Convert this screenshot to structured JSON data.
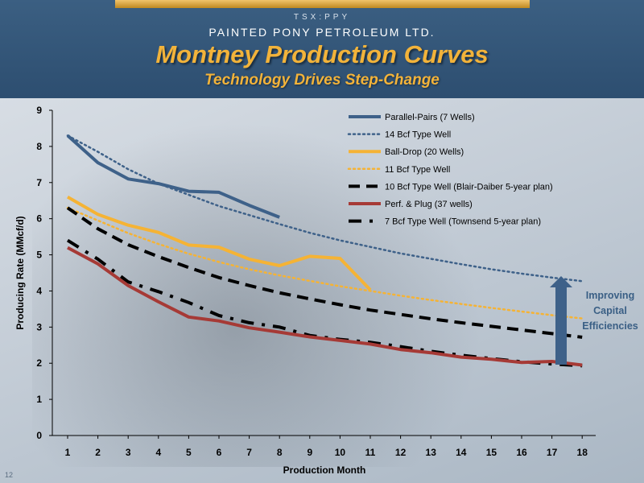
{
  "header": {
    "ticker": "TSX:PPY",
    "company": "PAINTED PONY PETROLEUM LTD.",
    "title": "Montney Production Curves",
    "subtitle": "Technology Drives Step-Change"
  },
  "page_number": "12",
  "annotation": {
    "line1": "Improving",
    "line2": "Capital",
    "line3": "Efficiencies"
  },
  "colors": {
    "blue": "#3e6189",
    "gold": "#f5b335",
    "red": "#a63a36",
    "black": "#000000",
    "arrow": "#3e6189"
  },
  "chart_data": {
    "type": "line",
    "xlabel": "Production Month",
    "ylabel": "Producing Rate (MMcf/d)",
    "xlim": [
      1,
      18
    ],
    "ylim": [
      0,
      9
    ],
    "x_ticks": [
      "1",
      "2",
      "3",
      "4",
      "5",
      "6",
      "7",
      "8",
      "9",
      "10",
      "11",
      "12",
      "13",
      "14",
      "15",
      "16",
      "17",
      "18"
    ],
    "y_ticks": [
      "0",
      "1",
      "2",
      "3",
      "4",
      "5",
      "6",
      "7",
      "8",
      "9"
    ],
    "grid": false,
    "legend_position": "top-right",
    "series": [
      {
        "name": "Parallel-Pairs (7 Wells)",
        "color_key": "blue",
        "style": "solid",
        "x": [
          1,
          2,
          3,
          4,
          5,
          6,
          7,
          8
        ],
        "y": [
          8.3,
          7.55,
          7.1,
          6.97,
          6.76,
          6.73,
          6.37,
          6.04
        ]
      },
      {
        "name": "14 Bcf Type Well",
        "color_key": "blue",
        "style": "dotted",
        "x": [
          1,
          2,
          3,
          4,
          5,
          6,
          7,
          8,
          9,
          10,
          11,
          12,
          13,
          14,
          15,
          16,
          17,
          18
        ],
        "y": [
          8.3,
          7.85,
          7.37,
          6.97,
          6.66,
          6.35,
          6.1,
          5.85,
          5.61,
          5.4,
          5.22,
          5.04,
          4.89,
          4.74,
          4.6,
          4.48,
          4.37,
          4.27
        ]
      },
      {
        "name": "Ball-Drop (20 Wells)",
        "color_key": "gold",
        "style": "solid",
        "x": [
          1,
          2,
          3,
          4,
          5,
          6,
          7,
          8,
          9,
          10,
          11
        ],
        "y": [
          6.6,
          6.12,
          5.82,
          5.62,
          5.27,
          5.21,
          4.88,
          4.7,
          4.96,
          4.9,
          4.03
        ]
      },
      {
        "name": "11 Bcf Type Well",
        "color_key": "gold",
        "style": "dotted",
        "x": [
          1,
          2,
          3,
          4,
          5,
          6,
          7,
          8,
          9,
          10,
          11,
          12,
          13,
          14,
          15,
          16,
          17,
          18
        ],
        "y": [
          6.3,
          5.95,
          5.6,
          5.3,
          5.03,
          4.8,
          4.6,
          4.43,
          4.28,
          4.13,
          4.0,
          3.87,
          3.75,
          3.64,
          3.53,
          3.43,
          3.33,
          3.24
        ]
      },
      {
        "name": "10 Bcf Type Well (Blair-Daiber 5-year plan)",
        "color_key": "black",
        "style": "dashed",
        "x": [
          1,
          2,
          3,
          4,
          5,
          6,
          7,
          8,
          9,
          10,
          11,
          12,
          13,
          14,
          15,
          16,
          17,
          18
        ],
        "y": [
          6.3,
          5.72,
          5.28,
          4.95,
          4.65,
          4.37,
          4.15,
          3.95,
          3.78,
          3.62,
          3.47,
          3.35,
          3.23,
          3.12,
          3.02,
          2.92,
          2.82,
          2.72
        ]
      },
      {
        "name": "Perf. & Plug (37 wells)",
        "color_key": "red",
        "style": "solid",
        "x": [
          1,
          2,
          3,
          4,
          5,
          6,
          7,
          8,
          9,
          10,
          11,
          12,
          13,
          14,
          15,
          16,
          17,
          18
        ],
        "y": [
          5.2,
          4.75,
          4.15,
          3.7,
          3.28,
          3.17,
          2.98,
          2.86,
          2.73,
          2.63,
          2.53,
          2.38,
          2.29,
          2.17,
          2.11,
          2.02,
          2.05,
          1.95
        ]
      },
      {
        "name": "7 Bcf Type Well (Townsend 5-year plan)",
        "color_key": "black",
        "style": "dash-dot",
        "x": [
          1,
          2,
          3,
          4,
          5,
          6,
          7,
          8,
          9,
          10,
          11,
          12,
          13,
          14,
          15,
          16,
          17,
          18
        ],
        "y": [
          5.4,
          4.88,
          4.25,
          3.98,
          3.68,
          3.32,
          3.12,
          3.0,
          2.77,
          2.66,
          2.58,
          2.46,
          2.33,
          2.22,
          2.13,
          2.04,
          1.98,
          1.93
        ]
      }
    ]
  }
}
